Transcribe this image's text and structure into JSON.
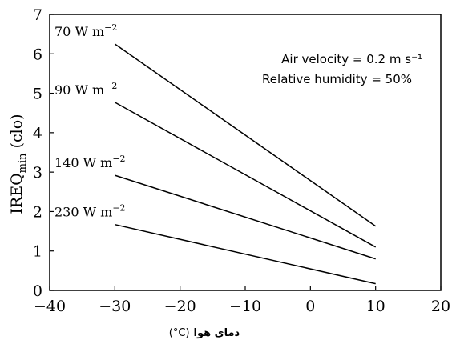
{
  "chart_data": {
    "type": "line",
    "title": "",
    "xlabel": {
      "persian": "دمای هوا",
      "unit": "(°C)"
    },
    "ylabel": {
      "main": "IREQ",
      "subscript": "min",
      "unit": "(clo)"
    },
    "xlim": [
      -40,
      20
    ],
    "ylim": [
      0,
      7
    ],
    "xticks": [
      -40,
      -30,
      -20,
      -10,
      0,
      10,
      20
    ],
    "yticks": [
      0,
      1,
      2,
      3,
      4,
      5,
      6,
      7
    ],
    "grid": false,
    "legend": "none",
    "annotations": [
      "Air velocity = 0.2 m s⁻¹",
      "Relative humidity = 50%"
    ],
    "series": [
      {
        "name": "70 W m⁻²",
        "x": [
          -30,
          10
        ],
        "y": [
          6.25,
          1.63
        ]
      },
      {
        "name": "90 W m⁻²",
        "x": [
          -30,
          10
        ],
        "y": [
          4.77,
          1.1
        ]
      },
      {
        "name": "140 W m⁻²",
        "x": [
          -30,
          10
        ],
        "y": [
          2.92,
          0.8
        ]
      },
      {
        "name": "230 W m⁻²",
        "x": [
          -30,
          10
        ],
        "y": [
          1.67,
          0.17
        ]
      }
    ]
  }
}
